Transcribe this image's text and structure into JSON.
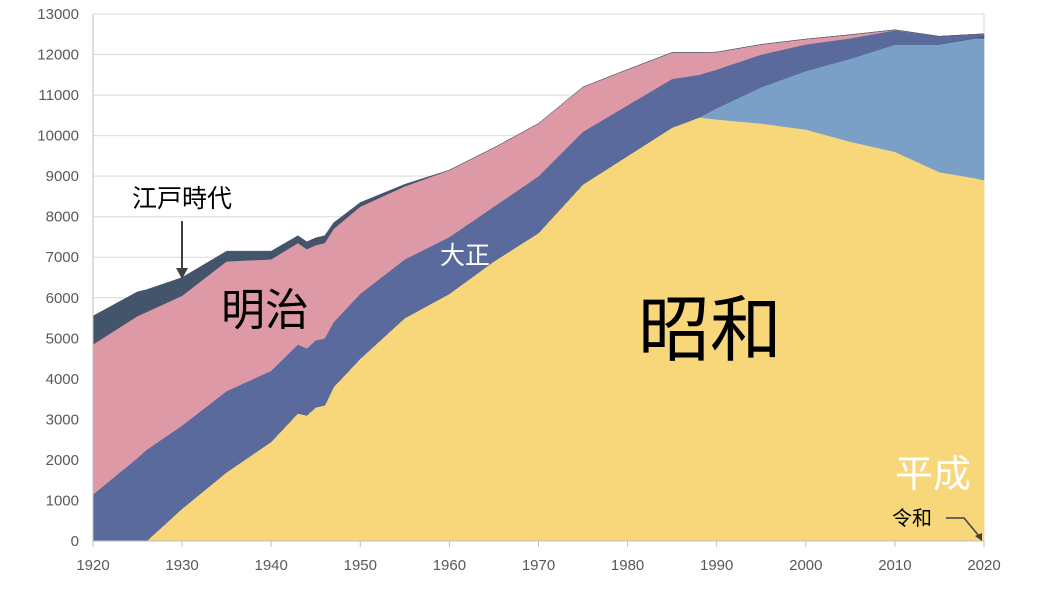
{
  "chart_data": {
    "type": "area",
    "stacked": true,
    "title": "",
    "xlabel": "",
    "ylabel": "",
    "xlim": [
      1920,
      2020
    ],
    "ylim": [
      0,
      13000
    ],
    "x_ticks": [
      1920,
      1930,
      1940,
      1950,
      1960,
      1970,
      1980,
      1990,
      2000,
      2010,
      2020
    ],
    "y_ticks": [
      0,
      1000,
      2000,
      3000,
      4000,
      5000,
      6000,
      7000,
      8000,
      9000,
      10000,
      11000,
      12000,
      13000
    ],
    "grid": "horizontal",
    "legend": "none",
    "x": [
      1920,
      1925,
      1926,
      1930,
      1935,
      1940,
      1943,
      1944,
      1945,
      1946,
      1947,
      1950,
      1955,
      1960,
      1965,
      1970,
      1975,
      1980,
      1985,
      1988,
      1990,
      1995,
      2000,
      2005,
      2010,
      2015,
      2019,
      2020
    ],
    "series": [
      {
        "name": "昭和",
        "color": "#F7D77A",
        "values": [
          0,
          0,
          0,
          800,
          1700,
          2450,
          3150,
          3100,
          3300,
          3350,
          3800,
          4500,
          5500,
          6100,
          6900,
          7600,
          8800,
          9500,
          10200,
          10450,
          10400,
          10300,
          10150,
          9850,
          9600,
          9100,
          8950,
          8900
        ]
      },
      {
        "name": "平成",
        "color": "#7BA0C8",
        "values": [
          0,
          0,
          0,
          0,
          0,
          0,
          0,
          0,
          0,
          0,
          0,
          0,
          0,
          0,
          0,
          0,
          0,
          0,
          0,
          0,
          280,
          900,
          1450,
          2050,
          2650,
          3150,
          3450,
          3500
        ]
      },
      {
        "name": "令和",
        "color": "#44546A",
        "values": [
          0,
          0,
          0,
          0,
          0,
          0,
          0,
          0,
          0,
          0,
          0,
          0,
          0,
          0,
          0,
          0,
          0,
          0,
          0,
          0,
          0,
          0,
          0,
          0,
          0,
          0,
          20,
          60
        ]
      },
      {
        "name": "大正",
        "color": "#5A6A9C",
        "values": [
          1150,
          2050,
          2250,
          2050,
          2000,
          1750,
          1700,
          1650,
          1650,
          1650,
          1600,
          1600,
          1450,
          1400,
          1350,
          1400,
          1300,
          1250,
          1200,
          1050,
          950,
          800,
          650,
          500,
          350,
          200,
          80,
          50
        ]
      },
      {
        "name": "明治",
        "color": "#DE99A7",
        "values": [
          3700,
          3500,
          3400,
          3200,
          3200,
          2750,
          2500,
          2450,
          2350,
          2350,
          2300,
          2150,
          1800,
          1650,
          1450,
          1300,
          1100,
          880,
          650,
          550,
          430,
          250,
          130,
          90,
          10,
          0,
          0,
          0
        ]
      },
      {
        "name": "江戸時代",
        "color": "#44546A",
        "values": [
          700,
          600,
          550,
          450,
          250,
          200,
          180,
          180,
          180,
          180,
          150,
          100,
          50,
          0,
          0,
          0,
          0,
          0,
          0,
          0,
          0,
          0,
          0,
          0,
          0,
          0,
          0,
          0
        ]
      }
    ],
    "annotations": [
      {
        "text": "江戸時代",
        "series": "江戸時代",
        "arrow": true
      },
      {
        "text": "明治",
        "series": "明治"
      },
      {
        "text": "大正",
        "series": "大正"
      },
      {
        "text": "昭和",
        "series": "昭和"
      },
      {
        "text": "平成",
        "series": "平成"
      },
      {
        "text": "令和",
        "series": "令和",
        "arrow": true
      }
    ]
  }
}
